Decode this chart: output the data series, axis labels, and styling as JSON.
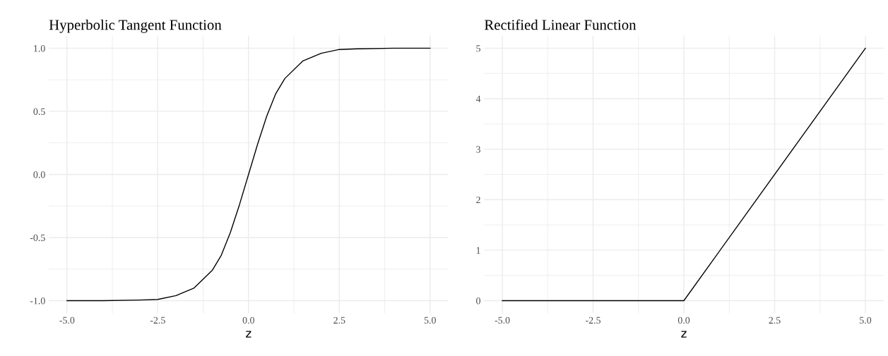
{
  "chart_data": [
    {
      "type": "line",
      "title": "Hyperbolic Tangent Function",
      "xlabel": "z",
      "x": [
        -5,
        -4,
        -3,
        -2.5,
        -2,
        -1.5,
        -1,
        -0.75,
        -0.5,
        -0.25,
        0,
        0.25,
        0.5,
        0.75,
        1,
        1.5,
        2,
        2.5,
        3,
        4,
        5
      ],
      "series": [
        {
          "color": "#000000",
          "values": [
            -1.0,
            -1.0,
            -0.995,
            -0.99,
            -0.96,
            -0.9,
            -0.76,
            -0.64,
            -0.46,
            -0.24,
            0.0,
            0.24,
            0.46,
            0.64,
            0.76,
            0.9,
            0.96,
            0.99,
            0.995,
            1.0,
            1.0
          ]
        }
      ],
      "xlim": [
        -5.5,
        5.5
      ],
      "xticks": [
        {
          "value": -5,
          "label": "-5.0"
        },
        {
          "value": -2.5,
          "label": "-2.5"
        },
        {
          "value": 0,
          "label": "0.0"
        },
        {
          "value": 2.5,
          "label": "2.5"
        },
        {
          "value": 5,
          "label": "5.0"
        }
      ],
      "ylim": [
        -1.1,
        1.1
      ],
      "yticks": [
        {
          "value": -1,
          "label": "-1.0"
        },
        {
          "value": -0.5,
          "label": "-0.5"
        },
        {
          "value": 0,
          "label": "0.0"
        },
        {
          "value": 0.5,
          "label": "0.5"
        },
        {
          "value": 1,
          "label": "1.0"
        }
      ],
      "grid": true
    },
    {
      "type": "line",
      "title": "Rectified Linear Function",
      "xlabel": "z",
      "x": [
        -5,
        0,
        5
      ],
      "series": [
        {
          "color": "#000000",
          "values": [
            0,
            0,
            5
          ]
        }
      ],
      "xlim": [
        -5.5,
        5.5
      ],
      "xticks": [
        {
          "value": -5,
          "label": "-5.0"
        },
        {
          "value": -2.5,
          "label": "-2.5"
        },
        {
          "value": 0,
          "label": "0.0"
        },
        {
          "value": 2.5,
          "label": "2.5"
        },
        {
          "value": 5,
          "label": "5.0"
        }
      ],
      "ylim": [
        -0.25,
        5.25
      ],
      "yticks": [
        0,
        1,
        2,
        3,
        4,
        5
      ],
      "grid": true
    }
  ]
}
